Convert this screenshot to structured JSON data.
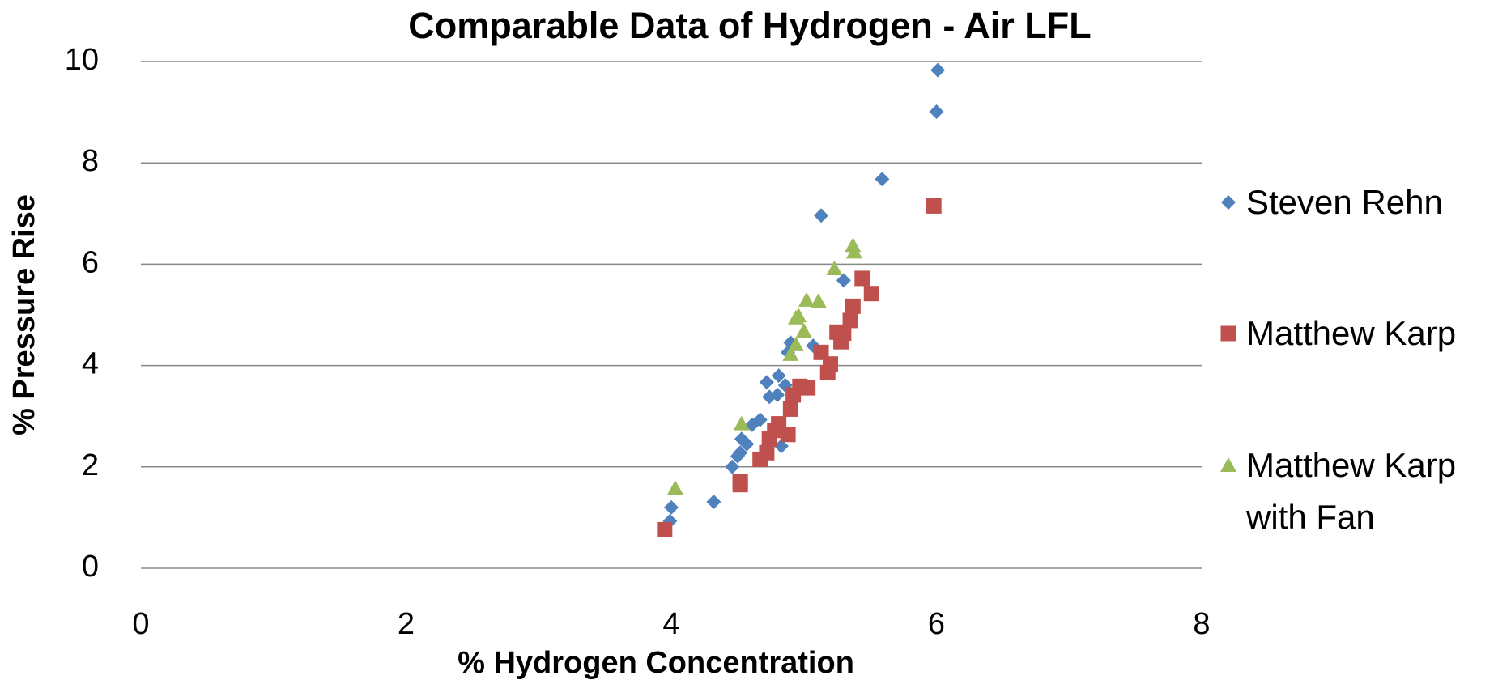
{
  "chart_data": {
    "type": "scatter",
    "title": "Comparable Data of Hydrogen - Air LFL",
    "x_label": "% Hydrogen Concentration",
    "y_label": "% Pressure Rise",
    "xlim": [
      0,
      8
    ],
    "xticks": [
      0,
      2,
      4,
      6,
      8
    ],
    "ylim": [
      0,
      10
    ],
    "yticks": [
      0,
      2,
      4,
      6,
      8,
      10
    ],
    "grid": true,
    "legend": "right",
    "series": [
      {
        "name": "Steven Rehn",
        "color": "#4f81bd",
        "marker": "diamond",
        "x": [
          6.01,
          6.0,
          5.59,
          5.13,
          5.3,
          5.07,
          4.88,
          4.9,
          4.81,
          4.72,
          4.86,
          4.74,
          4.8,
          4.67,
          4.61,
          4.53,
          4.57,
          4.52,
          4.5,
          4.46,
          4.74,
          4.83,
          4.32,
          4.0,
          3.99
        ],
        "values": [
          9.83,
          9.01,
          7.68,
          6.96,
          5.68,
          4.39,
          4.26,
          4.45,
          3.8,
          3.67,
          3.61,
          3.38,
          3.42,
          2.93,
          2.83,
          2.55,
          2.45,
          2.28,
          2.21,
          2.0,
          2.62,
          2.41,
          1.31,
          1.2,
          0.93
        ]
      },
      {
        "name": "Matthew Karp",
        "color": "#c0504d",
        "marker": "square",
        "x": [
          5.98,
          5.44,
          5.51,
          5.37,
          5.35,
          5.3,
          5.25,
          5.28,
          5.13,
          5.2,
          5.18,
          5.03,
          4.97,
          4.92,
          4.9,
          4.88,
          4.81,
          4.78,
          4.74,
          4.72,
          4.67,
          4.52,
          4.52,
          3.95
        ],
        "values": [
          7.15,
          5.72,
          5.42,
          5.17,
          4.89,
          4.64,
          4.66,
          4.47,
          4.26,
          4.03,
          3.86,
          3.56,
          3.59,
          3.42,
          3.14,
          2.64,
          2.85,
          2.72,
          2.55,
          2.28,
          2.15,
          1.71,
          1.65,
          0.76
        ]
      },
      {
        "name": "Matthew Karp with Fan",
        "color": "#9bbb59",
        "marker": "triangle",
        "x": [
          5.37,
          5.38,
          5.23,
          5.11,
          5.02,
          4.96,
          4.94,
          5.0,
          4.94,
          4.9,
          4.53,
          4.03
        ],
        "values": [
          6.37,
          6.24,
          5.91,
          5.27,
          5.29,
          4.98,
          4.94,
          4.68,
          4.41,
          4.22,
          2.85,
          1.58
        ]
      }
    ]
  }
}
